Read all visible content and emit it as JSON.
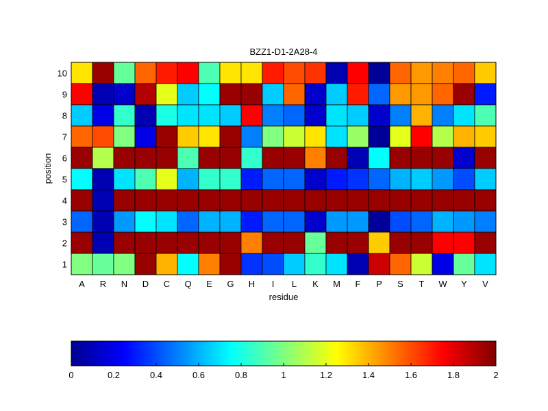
{
  "chart_data": {
    "type": "heatmap",
    "title": "BZZ1-D1-2A28-4",
    "xlabel": "residue",
    "ylabel": "position",
    "x_categories": [
      "A",
      "R",
      "N",
      "D",
      "C",
      "Q",
      "E",
      "G",
      "H",
      "I",
      "L",
      "K",
      "M",
      "F",
      "P",
      "S",
      "T",
      "W",
      "Y",
      "V"
    ],
    "y_categories": [
      "1",
      "2",
      "3",
      "4",
      "5",
      "6",
      "7",
      "8",
      "9",
      "10"
    ],
    "colormap": "jet",
    "clim": [
      0,
      2
    ],
    "colorbar": {
      "orientation": "horizontal",
      "placement": "bottom",
      "ticks": [
        0,
        0.2,
        0.4,
        0.6,
        0.8,
        1,
        1.2,
        1.4,
        1.6,
        1.8,
        2
      ],
      "tick_labels": [
        "0",
        "0.2",
        "0.4",
        "0.6",
        "0.8",
        "1",
        "1.2",
        "1.4",
        "1.6",
        "1.8",
        "2"
      ]
    },
    "rows": [
      {
        "position": "10",
        "values": [
          1.3,
          1.95,
          0.95,
          1.55,
          1.7,
          1.75,
          0.9,
          1.3,
          1.3,
          1.7,
          1.6,
          1.65,
          0.1,
          1.75,
          0.05,
          1.55,
          1.45,
          1.5,
          1.55,
          1.35
        ]
      },
      {
        "position": "9",
        "values": [
          1.75,
          0.1,
          0.15,
          1.9,
          1.2,
          0.65,
          0.75,
          1.95,
          1.95,
          0.65,
          1.55,
          0.15,
          0.65,
          1.7,
          0.45,
          1.45,
          1.45,
          1.55,
          1.95,
          0.3
        ]
      },
      {
        "position": "8",
        "values": [
          0.65,
          0.2,
          0.85,
          0.1,
          0.8,
          0.7,
          0.7,
          0.65,
          1.75,
          0.5,
          0.45,
          0.15,
          0.7,
          0.65,
          0.15,
          0.5,
          1.4,
          0.5,
          0.7,
          0.9
        ]
      },
      {
        "position": "7",
        "values": [
          1.55,
          1.6,
          1.0,
          0.2,
          1.95,
          1.35,
          1.3,
          1.95,
          0.5,
          1.0,
          1.15,
          1.3,
          0.7,
          1.05,
          0.05,
          1.2,
          1.75,
          1.1,
          1.4,
          1.35
        ]
      },
      {
        "position": "6",
        "values": [
          1.95,
          1.1,
          1.95,
          1.95,
          1.95,
          0.9,
          1.95,
          1.95,
          0.85,
          1.95,
          1.95,
          1.5,
          1.95,
          0.1,
          0.75,
          1.95,
          1.95,
          1.95,
          0.15,
          1.95
        ]
      },
      {
        "position": "5",
        "values": [
          0.75,
          0.1,
          0.7,
          0.9,
          1.2,
          0.6,
          0.85,
          0.85,
          0.3,
          0.45,
          0.45,
          0.15,
          0.3,
          0.35,
          0.45,
          0.6,
          0.65,
          0.55,
          0.4,
          0.65
        ]
      },
      {
        "position": "4",
        "values": [
          1.95,
          0.1,
          1.95,
          1.95,
          1.95,
          1.95,
          1.95,
          1.95,
          1.95,
          1.95,
          1.95,
          1.95,
          1.95,
          1.95,
          1.95,
          1.95,
          1.95,
          1.95,
          1.95,
          1.95
        ]
      },
      {
        "position": "3",
        "values": [
          0.45,
          0.1,
          0.55,
          0.75,
          0.7,
          0.45,
          0.6,
          0.6,
          0.3,
          0.45,
          0.45,
          0.15,
          0.55,
          0.55,
          0.05,
          0.4,
          0.45,
          0.6,
          0.55,
          0.5
        ]
      },
      {
        "position": "2",
        "values": [
          1.95,
          0.1,
          1.95,
          1.95,
          1.95,
          1.95,
          1.95,
          1.95,
          1.5,
          1.95,
          1.95,
          0.95,
          1.95,
          1.95,
          1.35,
          1.95,
          1.95,
          1.75,
          1.75,
          1.95
        ]
      },
      {
        "position": "1",
        "values": [
          1.0,
          0.95,
          1.0,
          1.95,
          1.4,
          0.75,
          1.5,
          1.95,
          0.35,
          0.4,
          0.65,
          0.85,
          0.7,
          0.1,
          1.85,
          1.55,
          1.15,
          0.2,
          0.95,
          0.7
        ]
      }
    ]
  }
}
